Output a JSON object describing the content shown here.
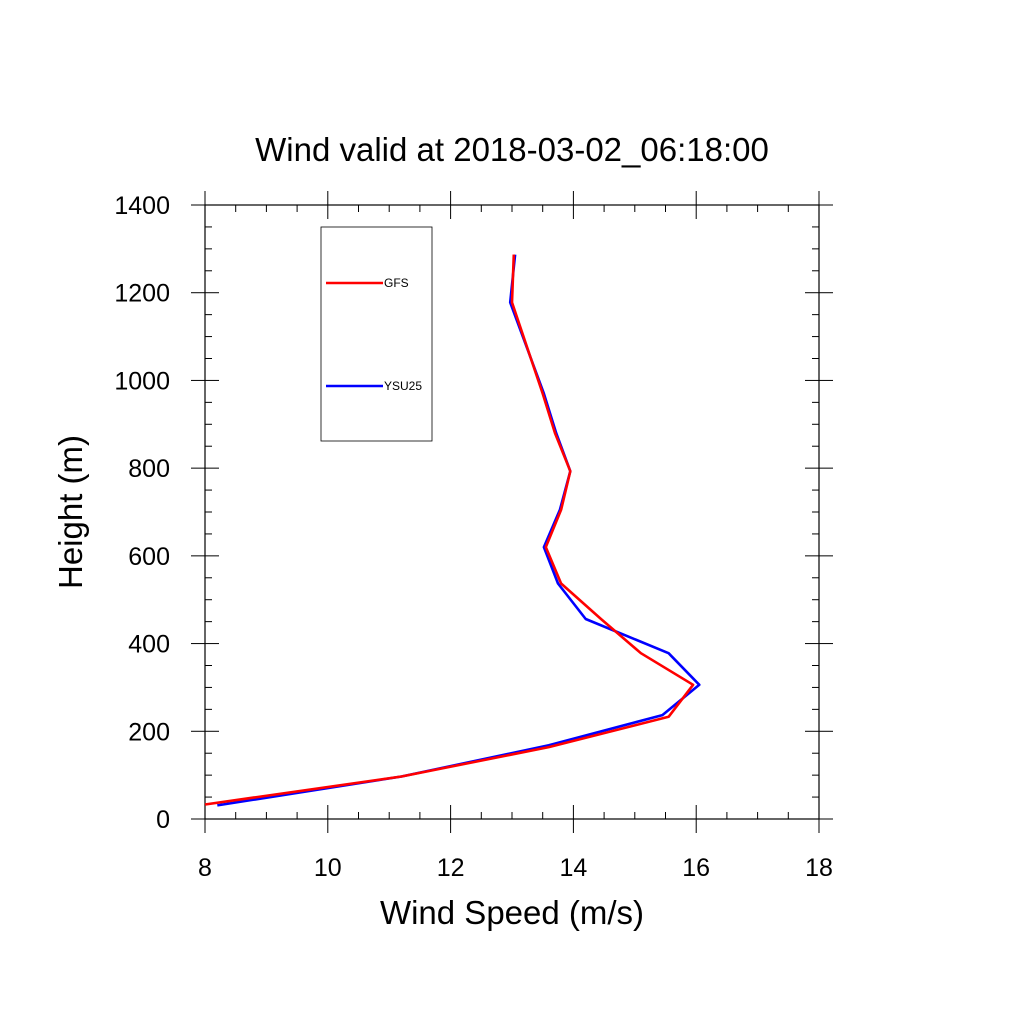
{
  "chart_data": {
    "type": "line",
    "title": "Wind valid at 2018-03-02_06:18:00",
    "xlabel": "Wind Speed (m/s)",
    "ylabel": "Height (m)",
    "xlim": [
      8,
      18
    ],
    "ylim": [
      0,
      1400
    ],
    "x_ticks": [
      "8",
      "10",
      "12",
      "14",
      "16",
      "18"
    ],
    "y_ticks": [
      "0",
      "200",
      "400",
      "600",
      "800",
      "1000",
      "1200",
      "1400"
    ],
    "legend_placement": "upper-left",
    "series": [
      {
        "name": "GFS",
        "color": "#ff0000",
        "points": [
          {
            "x": 8.0,
            "y": 33
          },
          {
            "x": 11.2,
            "y": 97
          },
          {
            "x": 13.6,
            "y": 164
          },
          {
            "x": 15.55,
            "y": 233
          },
          {
            "x": 15.95,
            "y": 306
          },
          {
            "x": 15.1,
            "y": 378
          },
          {
            "x": 14.45,
            "y": 456
          },
          {
            "x": 13.8,
            "y": 537
          },
          {
            "x": 13.55,
            "y": 620
          },
          {
            "x": 13.8,
            "y": 705
          },
          {
            "x": 13.95,
            "y": 793
          },
          {
            "x": 13.7,
            "y": 880
          },
          {
            "x": 13.5,
            "y": 970
          },
          {
            "x": 13.0,
            "y": 1178
          },
          {
            "x": 13.03,
            "y": 1287
          }
        ]
      },
      {
        "name": "YSU25",
        "color": "#0000ff",
        "points": [
          {
            "x": 8.2,
            "y": 31
          },
          {
            "x": 11.2,
            "y": 97
          },
          {
            "x": 13.6,
            "y": 168
          },
          {
            "x": 15.45,
            "y": 237
          },
          {
            "x": 16.05,
            "y": 306
          },
          {
            "x": 15.55,
            "y": 378
          },
          {
            "x": 14.2,
            "y": 456
          },
          {
            "x": 13.75,
            "y": 537
          },
          {
            "x": 13.52,
            "y": 620
          },
          {
            "x": 13.78,
            "y": 705
          },
          {
            "x": 13.95,
            "y": 793
          },
          {
            "x": 13.72,
            "y": 880
          },
          {
            "x": 13.52,
            "y": 970
          },
          {
            "x": 12.97,
            "y": 1178
          },
          {
            "x": 13.05,
            "y": 1287
          }
        ]
      }
    ]
  }
}
